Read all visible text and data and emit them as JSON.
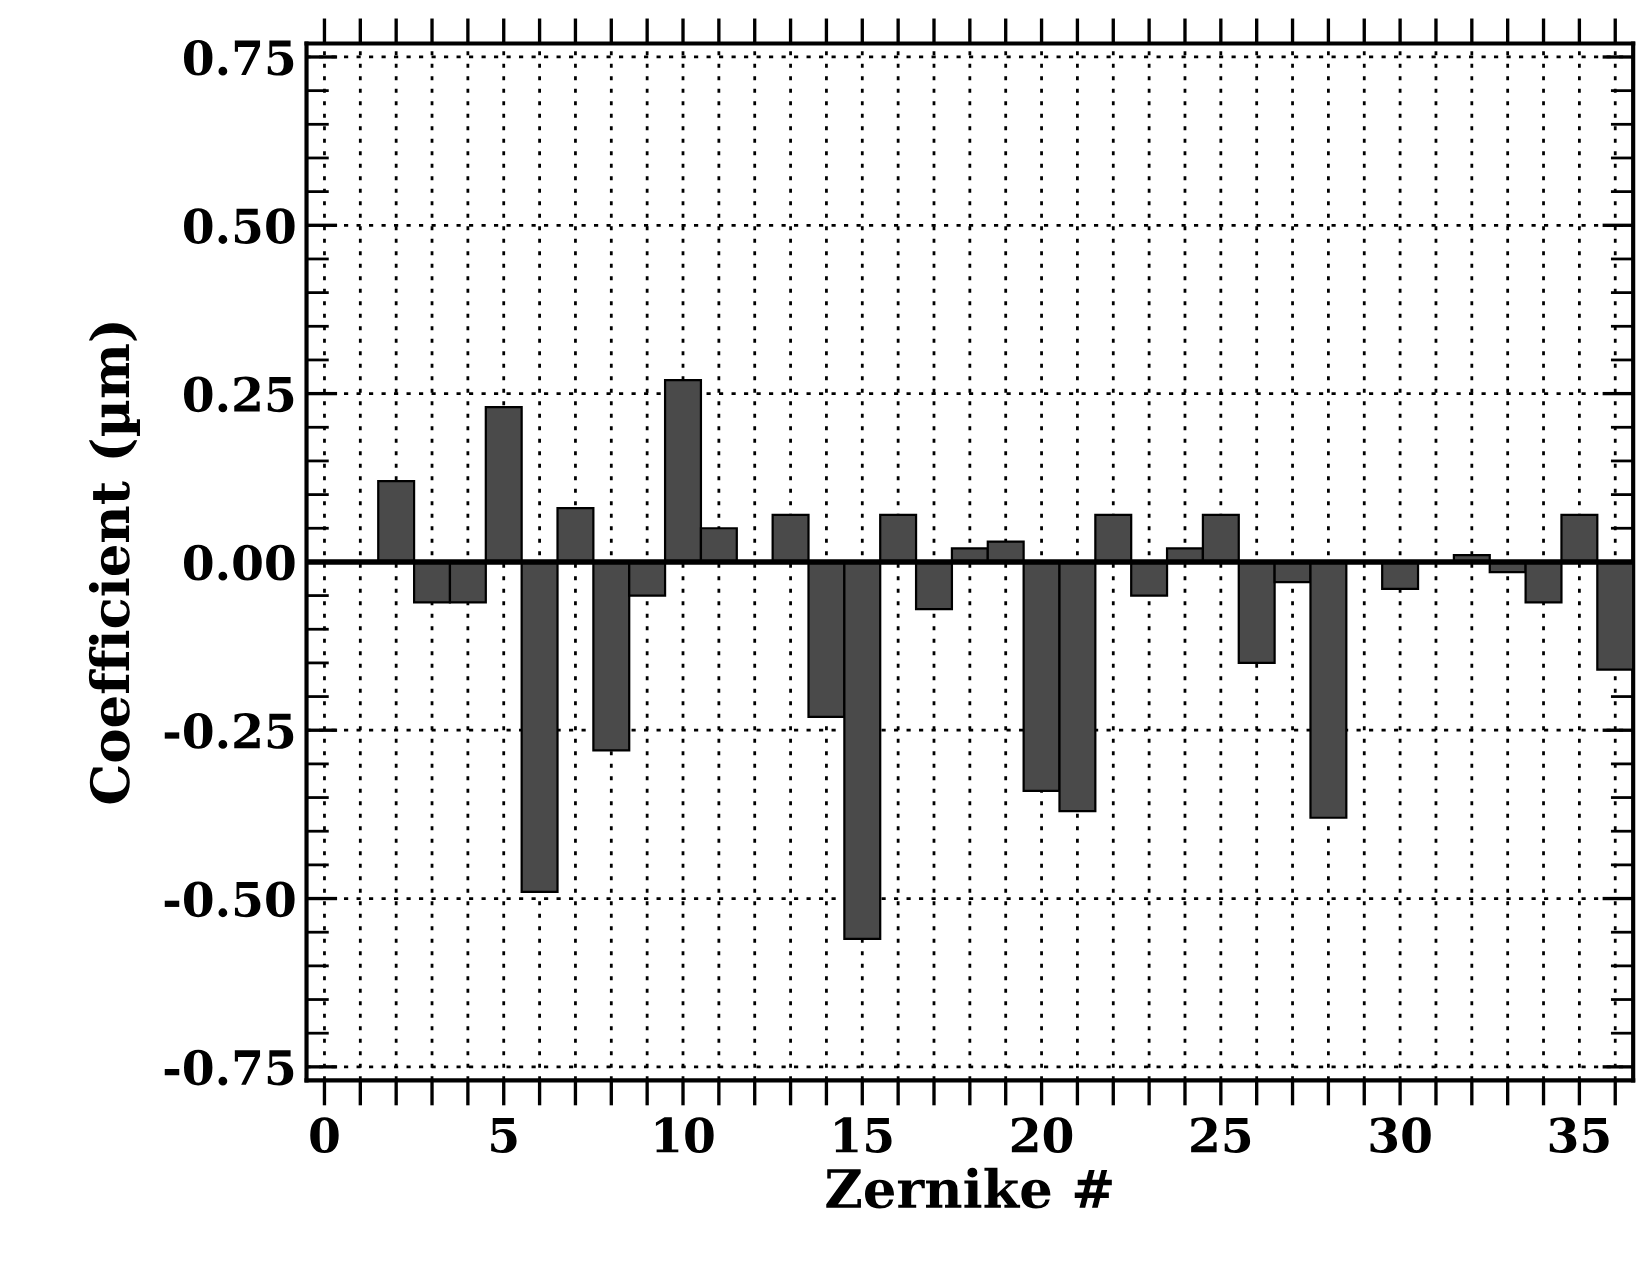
{
  "chart_data": {
    "type": "bar",
    "xlabel": "Zernike #",
    "ylabel": "Coefficient (µm)",
    "x": [
      2,
      3,
      4,
      5,
      6,
      7,
      8,
      9,
      10,
      11,
      12,
      13,
      14,
      15,
      16,
      17,
      18,
      19,
      20,
      21,
      22,
      23,
      24,
      25,
      26,
      27,
      28,
      29,
      30,
      31,
      32,
      33,
      34,
      35,
      36
    ],
    "values": [
      0.12,
      -0.06,
      -0.06,
      0.23,
      -0.49,
      0.08,
      -0.28,
      -0.05,
      0.27,
      0.05,
      null,
      0.07,
      -0.23,
      -0.56,
      0.07,
      -0.07,
      0.02,
      0.03,
      -0.34,
      -0.37,
      0.07,
      -0.05,
      0.02,
      0.07,
      -0.15,
      -0.03,
      -0.38,
      null,
      -0.04,
      null,
      0.01,
      -0.015,
      -0.06,
      0.07,
      -0.16
    ],
    "color": "#4a4a4a",
    "xlim": [
      -0.5,
      36.5
    ],
    "xticks": [
      0,
      5,
      10,
      15,
      20,
      25,
      30,
      35
    ],
    "ylim": [
      -0.77,
      0.77
    ],
    "yticks": [
      {
        "value": -0.75,
        "label": "-0.75"
      },
      {
        "value": -0.5,
        "label": "-0.50"
      },
      {
        "value": -0.25,
        "label": "-0.25"
      },
      {
        "value": 0,
        "label": "0.00"
      },
      {
        "value": 0.25,
        "label": "0.25"
      },
      {
        "value": 0.5,
        "label": "0.50"
      },
      {
        "value": 0.75,
        "label": "0.75"
      }
    ],
    "ref_lines": [
      {
        "axis": "y",
        "value": 0,
        "color": "#000000"
      }
    ],
    "grid": true
  }
}
